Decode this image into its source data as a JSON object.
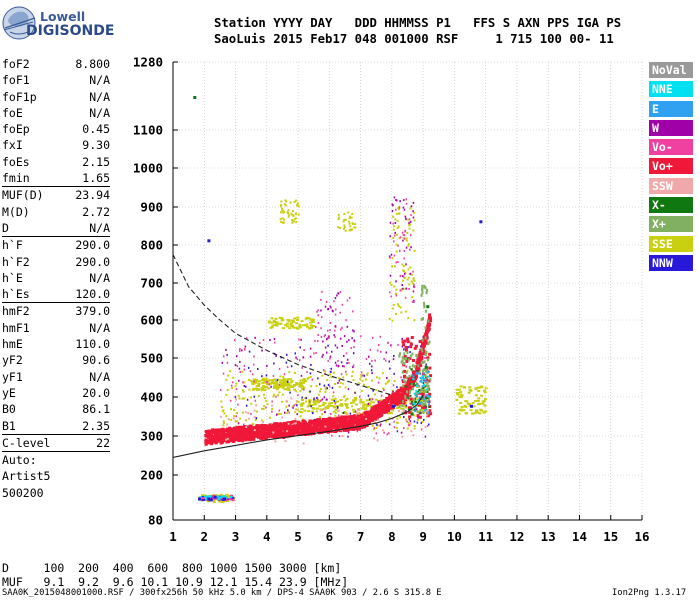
{
  "logo": {
    "line1": "Lowell",
    "line2": "DIGISONDE"
  },
  "header": {
    "line1": "Station YYYY DAY   DDD HHMMSS P1   FFS S AXN PPS IGA PS",
    "line2": "SaoLuis 2015 Feb17 048 001000 RSF     1 715 100 00- 11"
  },
  "params": [
    {
      "name": "foF2",
      "value": "8.800"
    },
    {
      "name": "foF1",
      "value": "N/A"
    },
    {
      "name": "foF1p",
      "value": "N/A"
    },
    {
      "name": "foE",
      "value": "N/A"
    },
    {
      "name": "foEp",
      "value": "0.45"
    },
    {
      "name": "fxI",
      "value": "9.30"
    },
    {
      "name": "foEs",
      "value": "2.15"
    },
    {
      "name": "fmin",
      "value": "1.65",
      "sep_after": true
    },
    {
      "name": "MUF(D)",
      "value": "23.94"
    },
    {
      "name": "M(D)",
      "value": "2.72"
    },
    {
      "name": "D",
      "value": "N/A",
      "sep_after": true
    },
    {
      "name": "h`F",
      "value": "290.0"
    },
    {
      "name": "h`F2",
      "value": "290.0"
    },
    {
      "name": "h`E",
      "value": "N/A"
    },
    {
      "name": "h`Es",
      "value": "120.0",
      "sep_after": true
    },
    {
      "name": "hmF2",
      "value": "379.0"
    },
    {
      "name": "hmF1",
      "value": "N/A"
    },
    {
      "name": "hmE",
      "value": "110.0"
    },
    {
      "name": "yF2",
      "value": "90.6"
    },
    {
      "name": "yF1",
      "value": "N/A"
    },
    {
      "name": "yE",
      "value": "20.0"
    },
    {
      "name": "B0",
      "value": "86.1"
    },
    {
      "name": "B1",
      "value": "2.35",
      "sep_after": true
    },
    {
      "name": "C-level",
      "value": "22",
      "sep_after": true
    }
  ],
  "params_free": [
    "Auto:",
    "Artist5",
    "500200"
  ],
  "legend": [
    {
      "label": "NoVal",
      "bg": "#999999",
      "fg": "#ffffff"
    },
    {
      "label": "NNE",
      "bg": "#00e0f0",
      "fg": "#ffffff"
    },
    {
      "label": "E",
      "bg": "#30a0f0",
      "fg": "#ffffff"
    },
    {
      "label": "W",
      "bg": "#a000a8",
      "fg": "#ffffff"
    },
    {
      "label": "Vo-",
      "bg": "#f040a0",
      "fg": "#ffffff"
    },
    {
      "label": "Vo+",
      "bg": "#f01838",
      "fg": "#ffffff"
    },
    {
      "label": "SSW",
      "bg": "#f0a8a8",
      "fg": "#ffffff"
    },
    {
      "label": "X-",
      "bg": "#107810",
      "fg": "#ffffff"
    },
    {
      "label": "X+",
      "bg": "#80b060",
      "fg": "#ffffff"
    },
    {
      "label": "SSE",
      "bg": "#c8d010",
      "fg": "#ffffff"
    },
    {
      "label": "NNW",
      "bg": "#2818d8",
      "fg": "#ffffff"
    }
  ],
  "footer": {
    "d_line": "D     100  200  400  600  800 1000 1500 3000 [km]",
    "muf_line": "MUF   9.1  9.2  9.6 10.1 10.9 12.1 15.4 23.9 [MHz]",
    "source": "SAA0K_2015048001000.RSF / 300fx256h 50 kHz 5.0 km / DPS-4 SAA0K 903 / 2.6 S 315.8 E",
    "version": "Ion2Png 1.3.17"
  },
  "chart_data": {
    "type": "scatter",
    "x_ticks": [
      "1",
      "2",
      "3",
      "4",
      "5",
      "6",
      "7",
      "8",
      "9",
      "10",
      "11",
      "12",
      "13",
      "14",
      "15",
      "16"
    ],
    "y_ticks": [
      "80",
      "200",
      "300",
      "400",
      "500",
      "600",
      "700",
      "800",
      "900",
      "1000",
      "1100",
      "1280"
    ],
    "xlim": [
      1,
      16
    ],
    "y_tick_values": [
      80,
      200,
      300,
      400,
      500,
      600,
      700,
      800,
      900,
      1000,
      1100,
      1280
    ],
    "grid": true,
    "series": [
      {
        "name": "X-",
        "color": "#107810",
        "points": [
          [
            1.65,
            1190
          ],
          [
            8.6,
            360
          ],
          [
            9.05,
            480
          ],
          [
            9.1,
            640
          ]
        ]
      },
      {
        "name": "Vo+",
        "color": "#f01838",
        "points": [
          [
            2.0,
            305
          ],
          [
            2.5,
            290
          ],
          [
            3.0,
            300
          ],
          [
            3.5,
            305
          ],
          [
            4.0,
            310
          ],
          [
            4.5,
            300
          ],
          [
            5.0,
            310
          ],
          [
            5.5,
            320
          ],
          [
            6.0,
            325
          ],
          [
            6.5,
            335
          ],
          [
            7.0,
            350
          ],
          [
            7.5,
            375
          ],
          [
            8.0,
            405
          ],
          [
            8.5,
            450
          ],
          [
            8.8,
            500
          ],
          [
            9.0,
            540
          ],
          [
            9.15,
            580
          ]
        ]
      },
      {
        "name": "NNW",
        "color": "#2818d8",
        "points": [
          [
            1.8,
            140
          ],
          [
            2.1,
            140
          ],
          [
            2.3,
            145
          ],
          [
            2.6,
            140
          ],
          [
            2.1,
            815
          ],
          [
            8.0,
            380
          ],
          [
            10.5,
            380
          ],
          [
            10.8,
            865
          ]
        ]
      }
    ],
    "curves": [
      {
        "name": "virtual-height-trace",
        "style": "solid",
        "points": [
          [
            1,
            245
          ],
          [
            2,
            262
          ],
          [
            3,
            276
          ],
          [
            4,
            290
          ],
          [
            5,
            301
          ],
          [
            6,
            312
          ],
          [
            7,
            325
          ],
          [
            7.5,
            333
          ],
          [
            8,
            345
          ],
          [
            8.5,
            362
          ],
          [
            8.8,
            380
          ],
          [
            9.0,
            405
          ]
        ]
      },
      {
        "name": "MUF-dashed",
        "style": "dashed",
        "points": [
          [
            1,
            775
          ],
          [
            1.5,
            690
          ],
          [
            2,
            640
          ],
          [
            2.5,
            600
          ],
          [
            3,
            565
          ],
          [
            4,
            520
          ],
          [
            5,
            483
          ],
          [
            6,
            455
          ],
          [
            7,
            430
          ],
          [
            8,
            405
          ]
        ]
      }
    ]
  }
}
